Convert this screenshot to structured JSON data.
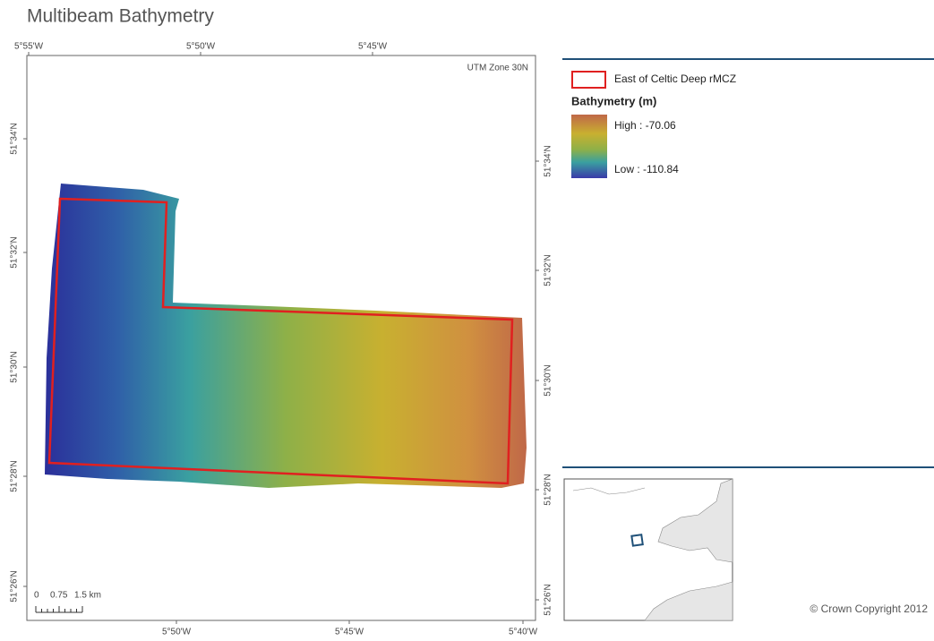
{
  "map": {
    "title": "Multibeam Bathymetry",
    "top_labels": [
      "5°55'W",
      "5°50'W",
      "5°45'W"
    ],
    "bottom_labels": [
      "5°50'W",
      "5°45'W",
      "5°40'W"
    ],
    "left_labels": [
      "51°34'N",
      "51°32'N",
      "51°30'N",
      "51°28'N",
      "51°26'N"
    ],
    "right_labels": [
      "51°34'N",
      "51°32'N",
      "51°30'N",
      "51°28'N",
      "51°26'N"
    ],
    "projection": "UTM Zone 30N",
    "scale_labels": [
      "0",
      "0.75",
      "1.5 km"
    ]
  },
  "legend": {
    "boundary": "East of Celtic Deep rMCZ",
    "heading": "Bathymetry (m)",
    "high": "High : -70.06",
    "low": "Low : -110.84"
  },
  "copyright": "© Crown Copyright 2012"
}
